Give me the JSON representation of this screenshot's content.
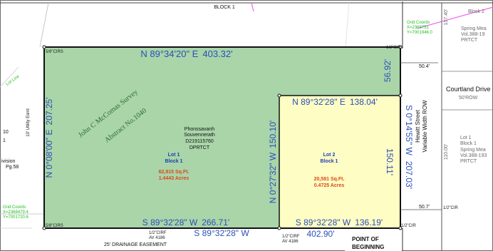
{
  "top_label": "BLOCK 1",
  "corner_block": "Block 2",
  "boundary": {
    "north_bearing": "N 89°34'20\" E",
    "north_distance": "403.32'",
    "east_top_bearing": "S 0°14'55\" W",
    "east_top_distance": "56.92'",
    "lot2_north_bearing": "N 89°32'28\" E",
    "lot2_north_distance": "138.04'",
    "lot2_east_distance": "150.11'",
    "east_total_distance": "207.03'",
    "west_bearing": "N 0°08'00\" E",
    "west_distance": "207.25'",
    "divide_bearing": "N 0°27'32\" W",
    "divide_distance": "150.10'",
    "south_lot1_bearing": "S 89°32'28\" W",
    "south_lot1_distance": "266.71'",
    "south_lot2_bearing": "S 89°32'28\" W",
    "south_lot2_distance": "136.19'",
    "south_total_bearing": "S 89°32'28\" W",
    "south_total_distance": "402.90'"
  },
  "survey_label": {
    "line1": "John C McComas Survey",
    "line2": "Abstract No.1040"
  },
  "owner": {
    "name1": "Phonssavanh",
    "name2": "Souvennerath",
    "record": "D219115760",
    "ref": "DPRTCT"
  },
  "lot1": {
    "lot": "Lot 1",
    "block": "Block 1",
    "sqft": "62,915 Sq.Ft.",
    "acres": "1.4443 Acres"
  },
  "lot2": {
    "lot": "Lot 2",
    "block": "Block 1",
    "sqft": "20,581 Sq.Ft.",
    "acres": "0.4725 Acres"
  },
  "corners": {
    "nw": "5/8\"CIRS",
    "ne": "1/2\"CIR",
    "sw": "5/8\"CIRS",
    "se": "1/2\"CIR",
    "s1": "1/2\"CIRF",
    "s1b": "AV 4186",
    "s2": "1/2\"CIRF",
    "s2b": "AV 4186",
    "e": "1/2\"CIR"
  },
  "grid_coords_ne": {
    "title": "Grid Coords",
    "x": "X=2368751",
    "y": "Y=7001946.0"
  },
  "grid_coords_sw": {
    "title": "Grid Coords",
    "x": "X=2368479.4",
    "y": "Y=7001720.6"
  },
  "spring_meadows_top": {
    "line1": "Spring Mea",
    "line2": "Vol.388-19",
    "line3": "PRTCT"
  },
  "spring_meadows_lot": {
    "lot": "Lot 1",
    "block": "Block 1",
    "line1": "Spring Mea",
    "line2": "Vol.388-193",
    "line3": "PRTCT"
  },
  "courtland": {
    "name": "Courtland Drive",
    "row": "50'ROW"
  },
  "hewitt": {
    "line1": "Hewitt Street",
    "line2": "Variable Width ROW"
  },
  "easement_left": "10' Utility Esmt",
  "drainage": "25' DRAINAGE EASEMENT",
  "setbacks": {
    "top": "50.4'",
    "bottom": "50.7'"
  },
  "side_dims": {
    "top": "107.40'",
    "mid": "110.00'"
  },
  "left_division": {
    "line1": "ivision",
    "line2": "Pg.58"
  },
  "left_10": "10",
  "left_1": "1",
  "pob": {
    "line1": "POINT OF",
    "line2": "BEGINNING"
  },
  "faint_line_label": "Lot Line"
}
